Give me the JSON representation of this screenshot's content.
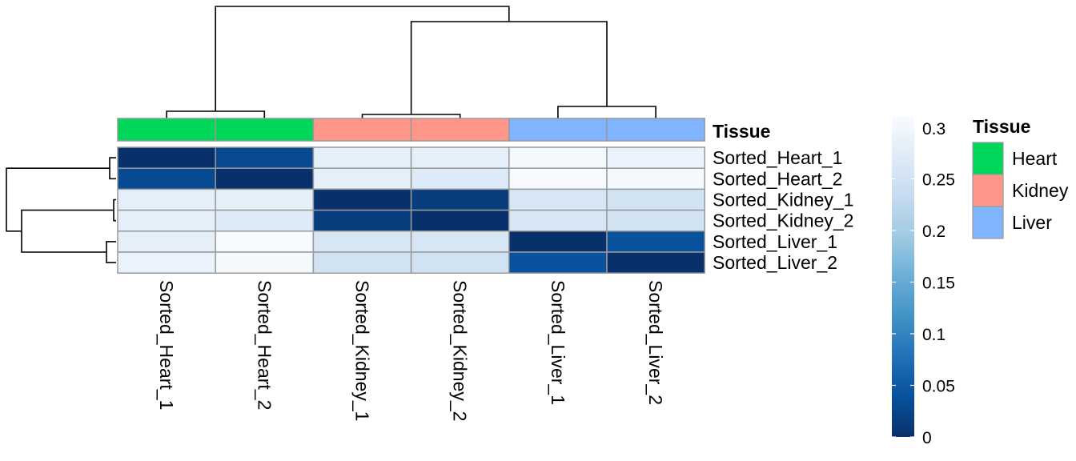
{
  "chart_data": {
    "type": "heatmap",
    "title": "",
    "rows": [
      "Sorted_Heart_1",
      "Sorted_Heart_2",
      "Sorted_Kidney_1",
      "Sorted_Kidney_2",
      "Sorted_Liver_1",
      "Sorted_Liver_2"
    ],
    "columns": [
      "Sorted_Heart_1",
      "Sorted_Heart_2",
      "Sorted_Kidney_1",
      "Sorted_Kidney_2",
      "Sorted_Liver_1",
      "Sorted_Liver_2"
    ],
    "values": [
      [
        0.0,
        0.03,
        0.28,
        0.28,
        0.305,
        0.29
      ],
      [
        0.03,
        0.0,
        0.28,
        0.27,
        0.31,
        0.305
      ],
      [
        0.28,
        0.28,
        0.0,
        0.015,
        0.26,
        0.25
      ],
      [
        0.28,
        0.27,
        0.015,
        0.0,
        0.26,
        0.25
      ],
      [
        0.28,
        0.31,
        0.26,
        0.26,
        0.0,
        0.04
      ],
      [
        0.29,
        0.305,
        0.25,
        0.25,
        0.04,
        0.0
      ]
    ],
    "color_scale": {
      "min": 0,
      "max": 0.31,
      "stops": [
        "#08306b",
        "#08519c",
        "#2171b5",
        "#4292c6",
        "#6baed6",
        "#9ecae1",
        "#c6dbef",
        "#deebf7",
        "#f7fbff"
      ],
      "ticks": [
        0,
        0.05,
        0.1,
        0.15,
        0.2,
        0.25,
        0.3
      ],
      "tick_labels": [
        "0",
        "0.05",
        "0.1",
        "0.15",
        "0.2",
        "0.25",
        "0.3"
      ]
    },
    "annotation": {
      "name": "Tissue",
      "values": [
        "Heart",
        "Heart",
        "Kidney",
        "Kidney",
        "Liver",
        "Liver"
      ],
      "legend": [
        {
          "label": "Heart",
          "color": "#00d65a"
        },
        {
          "label": "Kidney",
          "color": "#ff968a"
        },
        {
          "label": "Liver",
          "color": "#80b4ff"
        }
      ]
    },
    "column_clustering": [
      [
        0,
        1
      ],
      [
        2,
        3
      ],
      [
        4,
        5
      ],
      [
        [
          2,
          3
        ],
        [
          4,
          5
        ]
      ],
      [
        [
          0,
          1
        ],
        [
          [
            2,
            3
          ],
          [
            4,
            5
          ]
        ]
      ]
    ],
    "row_clustering": [
      [
        0,
        1
      ],
      [
        2,
        3
      ],
      [
        4,
        5
      ],
      [
        [
          2,
          3
        ],
        [
          4,
          5
        ]
      ],
      [
        [
          0,
          1
        ],
        [
          [
            2,
            3
          ],
          [
            4,
            5
          ]
        ]
      ]
    ],
    "legend_placement": "right"
  }
}
